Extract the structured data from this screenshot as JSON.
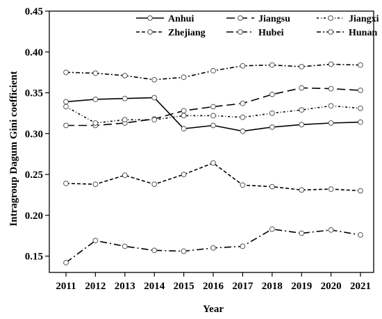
{
  "chart_data": {
    "type": "line",
    "xlabel": "Year",
    "ylabel": "Intragroup Dagum Gini coefficient",
    "ylim": [
      0.13,
      0.45
    ],
    "yticks": [
      "0.15",
      "0.20",
      "0.25",
      "0.30",
      "0.35",
      "0.40",
      "0.45"
    ],
    "categories": [
      "2011",
      "2012",
      "2013",
      "2014",
      "2015",
      "2016",
      "2017",
      "2018",
      "2019",
      "2020",
      "2021"
    ],
    "grid": false,
    "legend_position": "top-right",
    "series": [
      {
        "name": "Anhui",
        "dash": "solid",
        "values": [
          0.339,
          0.342,
          0.343,
          0.344,
          0.306,
          0.31,
          0.303,
          0.308,
          0.311,
          0.313,
          0.314
        ]
      },
      {
        "name": "Jiangsu",
        "dash": "longdash",
        "values": [
          0.31,
          0.31,
          0.313,
          0.318,
          0.328,
          0.333,
          0.337,
          0.348,
          0.356,
          0.355,
          0.353
        ]
      },
      {
        "name": "Jiangxi",
        "dash": "dashdot",
        "values": [
          0.333,
          0.313,
          0.317,
          0.317,
          0.322,
          0.322,
          0.32,
          0.325,
          0.329,
          0.334,
          0.331
        ]
      },
      {
        "name": "Zhejiang",
        "dash": "dash",
        "values": [
          0.239,
          0.238,
          0.249,
          0.238,
          0.25,
          0.264,
          0.237,
          0.235,
          0.231,
          0.232,
          0.23
        ]
      },
      {
        "name": "Hubei",
        "dash": "longdashdot",
        "values": [
          0.142,
          0.169,
          0.162,
          0.157,
          0.156,
          0.16,
          0.162,
          0.183,
          0.178,
          0.182,
          0.176
        ]
      },
      {
        "name": "Hunan",
        "dash": "densedashdot",
        "values": [
          0.375,
          0.374,
          0.371,
          0.366,
          0.369,
          0.377,
          0.383,
          0.384,
          0.382,
          0.385,
          0.384
        ]
      }
    ]
  }
}
